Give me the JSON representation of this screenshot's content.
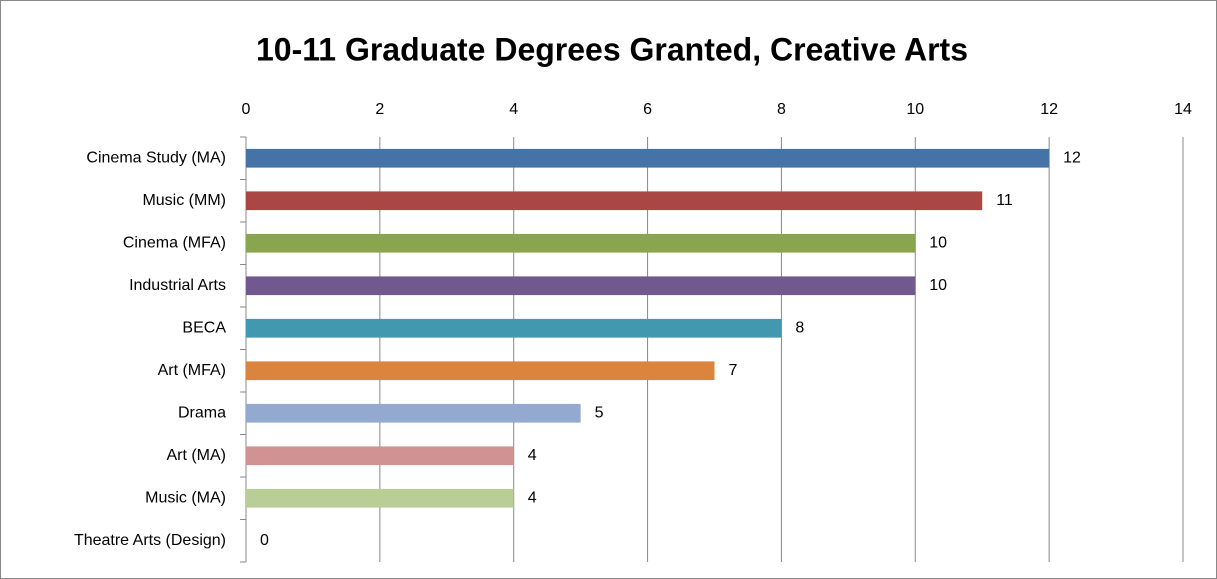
{
  "chart_data": {
    "type": "bar",
    "orientation": "horizontal",
    "title": "10-11 Graduate Degrees Granted, Creative Arts",
    "categories": [
      "Cinema Study (MA)",
      "Music (MM)",
      "Cinema (MFA)",
      "Industrial Arts",
      "BECA",
      "Art (MFA)",
      "Drama",
      "Art (MA)",
      "Music (MA)",
      "Theatre Arts (Design)"
    ],
    "values": [
      12,
      11,
      10,
      10,
      8,
      7,
      5,
      4,
      4,
      0
    ],
    "colors": [
      "#4572a7",
      "#aa4643",
      "#89a54e",
      "#71588f",
      "#4198af",
      "#db843d",
      "#93a9cf",
      "#d19392",
      "#b9cd96",
      "#a99bbd"
    ],
    "xlim": [
      0,
      14
    ],
    "xticks": [
      0,
      2,
      4,
      6,
      8,
      10,
      12,
      14
    ],
    "grid": true,
    "xaxis_position": "top"
  }
}
